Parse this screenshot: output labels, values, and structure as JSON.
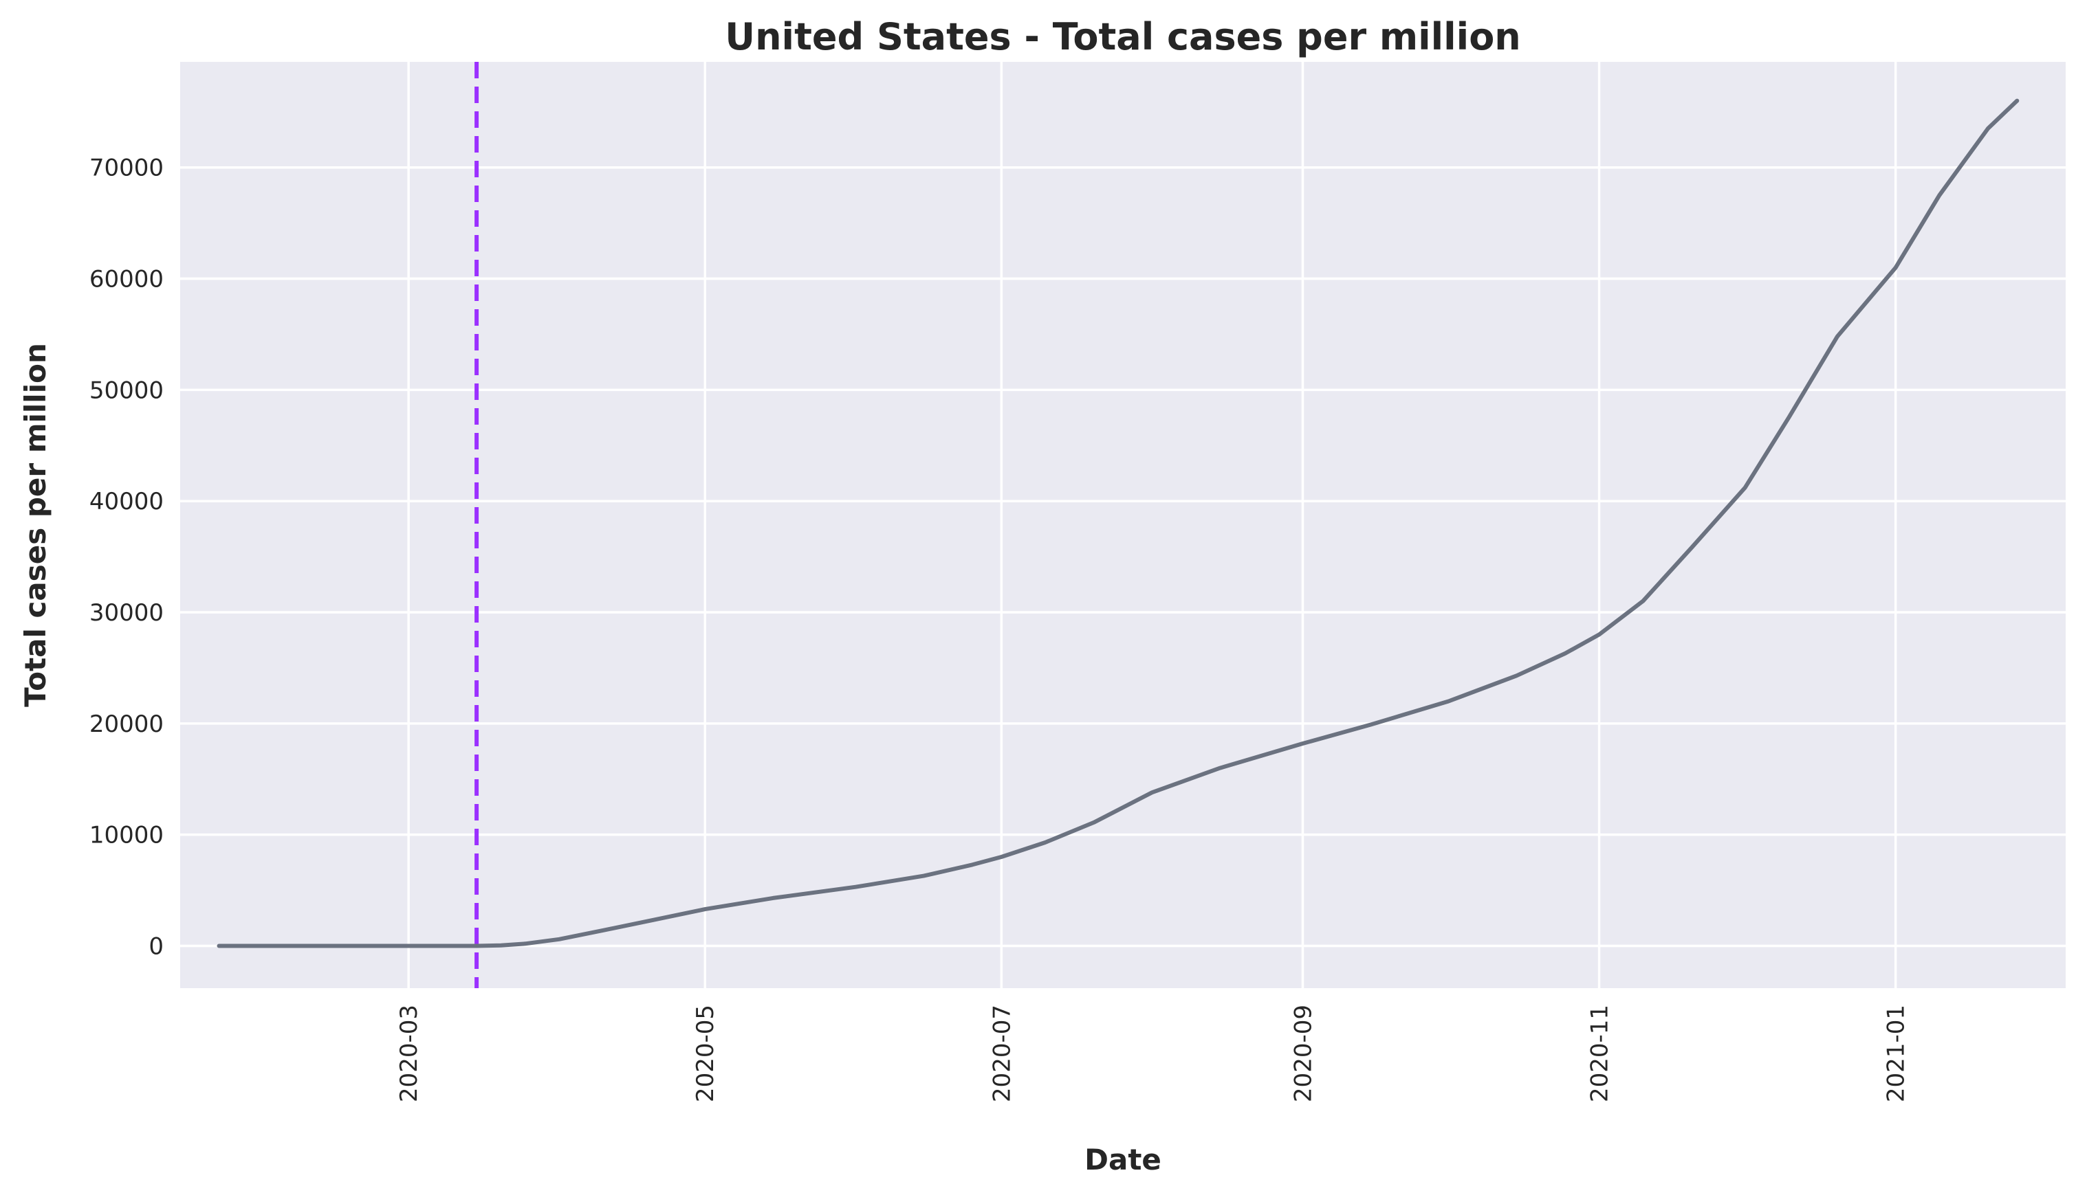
{
  "chart_data": {
    "type": "line",
    "title": "United States - Total cases per million",
    "xlabel": "Date",
    "ylabel": "Total cases per million",
    "x_range": [
      "2020-01-14",
      "2021-02-05"
    ],
    "ylim": [
      -3800,
      79500
    ],
    "x_ticks": [
      "2020-03",
      "2020-05",
      "2020-07",
      "2020-09",
      "2020-11",
      "2021-01"
    ],
    "y_ticks": [
      "0",
      "10000",
      "20000",
      "30000",
      "40000",
      "50000",
      "60000",
      "70000"
    ],
    "grid": true,
    "legend": "none",
    "vline": {
      "x": "2020-03-15",
      "style": "dashed",
      "color": "#9b30ff"
    },
    "series": [
      {
        "color": "#6b7280",
        "points": [
          [
            "2020-01-22",
            0
          ],
          [
            "2020-02-15",
            0
          ],
          [
            "2020-03-01",
            0
          ],
          [
            "2020-03-15",
            0
          ],
          [
            "2020-03-20",
            50
          ],
          [
            "2020-03-25",
            200
          ],
          [
            "2020-04-01",
            600
          ],
          [
            "2020-04-10",
            1400
          ],
          [
            "2020-04-20",
            2300
          ],
          [
            "2020-05-01",
            3300
          ],
          [
            "2020-05-15",
            4300
          ],
          [
            "2020-06-01",
            5300
          ],
          [
            "2020-06-15",
            6300
          ],
          [
            "2020-06-25",
            7300
          ],
          [
            "2020-07-01",
            8000
          ],
          [
            "2020-07-10",
            9300
          ],
          [
            "2020-07-20",
            11100
          ],
          [
            "2020-08-01",
            13800
          ],
          [
            "2020-08-15",
            16000
          ],
          [
            "2020-09-01",
            18200
          ],
          [
            "2020-09-15",
            19900
          ],
          [
            "2020-10-01",
            22000
          ],
          [
            "2020-10-15",
            24300
          ],
          [
            "2020-10-25",
            26300
          ],
          [
            "2020-11-01",
            28000
          ],
          [
            "2020-11-10",
            31000
          ],
          [
            "2020-11-20",
            35800
          ],
          [
            "2020-12-01",
            41200
          ],
          [
            "2020-12-10",
            47500
          ],
          [
            "2020-12-20",
            54800
          ],
          [
            "2021-01-01",
            61000
          ],
          [
            "2021-01-10",
            67500
          ],
          [
            "2021-01-20",
            73500
          ],
          [
            "2021-01-26",
            76000
          ]
        ]
      }
    ]
  }
}
